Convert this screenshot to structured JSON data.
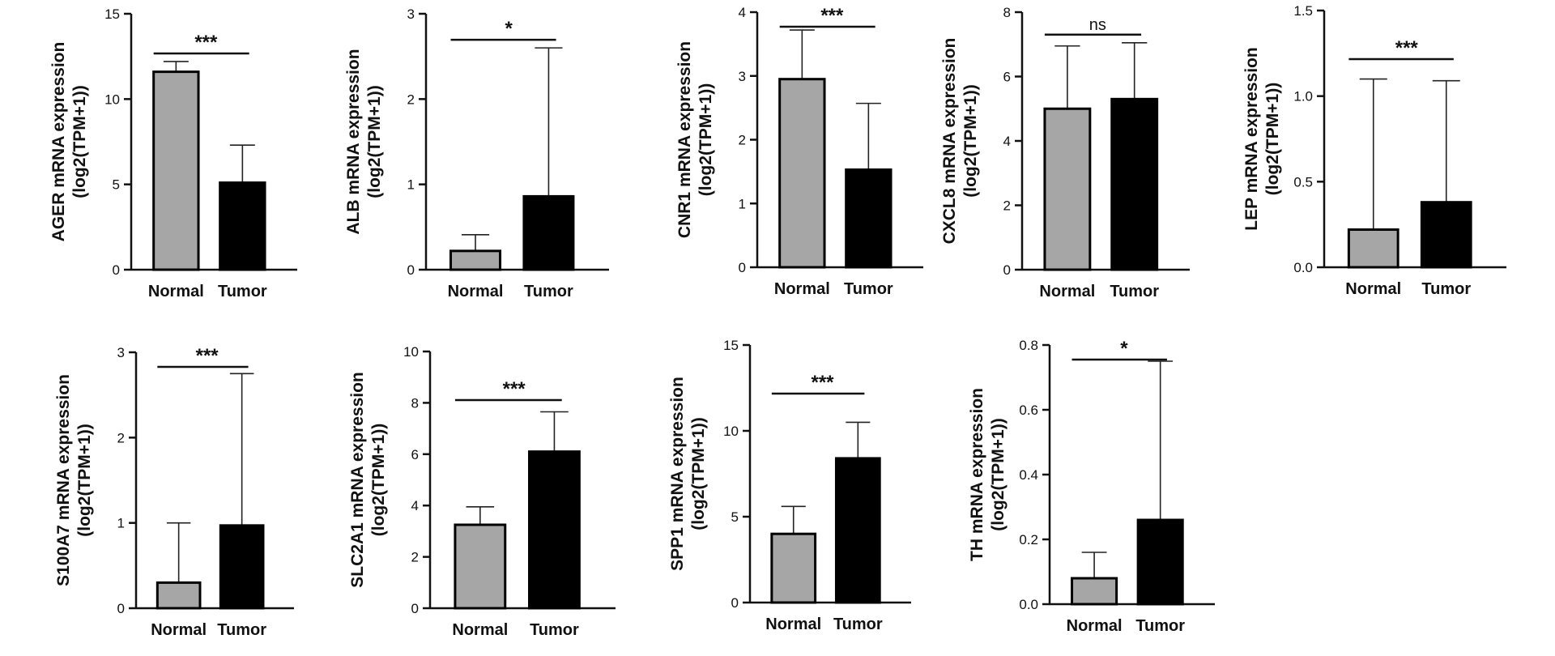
{
  "chart_data": [
    {
      "type": "bar",
      "gene": "AGER",
      "ylabel_line1": "AGER mRNA expression",
      "ylabel_line2": "(log2(TPM+1))",
      "categories": [
        "Normal",
        "Tumor"
      ],
      "values": [
        11.6,
        5.1
      ],
      "errors_upper": [
        12.2,
        7.3
      ],
      "ylim": [
        0,
        15
      ],
      "yticks": [
        "0",
        "5",
        "10",
        "15"
      ],
      "significance": "***",
      "colors": [
        "#a6a6a6",
        "#000000"
      ]
    },
    {
      "type": "bar",
      "gene": "ALB",
      "ylabel_line1": "ALB mRNA expression",
      "ylabel_line2": "(log2(TPM+1))",
      "categories": [
        "Normal",
        "Tumor"
      ],
      "values": [
        0.22,
        0.86
      ],
      "errors_upper": [
        0.41,
        2.6
      ],
      "ylim": [
        0,
        3
      ],
      "yticks": [
        "0",
        "1",
        "2",
        "3"
      ],
      "significance": "*",
      "colors": [
        "#a6a6a6",
        "#000000"
      ]
    },
    {
      "type": "bar",
      "gene": "CNR1",
      "ylabel_line1": "CNR1 mRNA expression",
      "ylabel_line2": "(log2(TPM+1))",
      "categories": [
        "Normal",
        "Tumor"
      ],
      "values": [
        2.95,
        1.53
      ],
      "errors_upper": [
        3.72,
        2.57
      ],
      "ylim": [
        0,
        4
      ],
      "yticks": [
        "0",
        "1",
        "2",
        "3",
        "4"
      ],
      "significance": "***",
      "colors": [
        "#a6a6a6",
        "#000000"
      ]
    },
    {
      "type": "bar",
      "gene": "CXCL8",
      "ylabel_line1": "CXCL8 mRNA expression",
      "ylabel_line2": "(log2(TPM+1))",
      "categories": [
        "Normal",
        "Tumor"
      ],
      "values": [
        5.0,
        5.3
      ],
      "errors_upper": [
        6.95,
        7.05
      ],
      "ylim": [
        0,
        8
      ],
      "yticks": [
        "0",
        "2",
        "4",
        "6",
        "8"
      ],
      "significance": "ns",
      "colors": [
        "#a6a6a6",
        "#000000"
      ]
    },
    {
      "type": "bar",
      "gene": "LEP",
      "ylabel_line1": "LEP mRNA expression",
      "ylabel_line2": "(log2(TPM+1))",
      "categories": [
        "Normal",
        "Tumor"
      ],
      "values": [
        0.22,
        0.38
      ],
      "errors_upper": [
        1.1,
        1.09
      ],
      "ylim": [
        0,
        1.5
      ],
      "yticks": [
        "0.0",
        "0.5",
        "1.0",
        "1.5"
      ],
      "significance": "***",
      "colors": [
        "#a6a6a6",
        "#000000"
      ]
    },
    {
      "type": "bar",
      "gene": "S100A7",
      "ylabel_line1": "S100A7 mRNA expression",
      "ylabel_line2": "(log2(TPM+1))",
      "categories": [
        "Normal",
        "Tumor"
      ],
      "values": [
        0.3,
        0.97
      ],
      "errors_upper": [
        1.0,
        2.75
      ],
      "ylim": [
        0,
        3
      ],
      "yticks": [
        "0",
        "1",
        "2",
        "3"
      ],
      "significance": "***",
      "colors": [
        "#a6a6a6",
        "#000000"
      ]
    },
    {
      "type": "bar",
      "gene": "SLC2A1",
      "ylabel_line1": "SLC2A1 mRNA expression",
      "ylabel_line2": "(log2(TPM+1))",
      "categories": [
        "Normal",
        "Tumor"
      ],
      "values": [
        3.25,
        6.1
      ],
      "errors_upper": [
        3.95,
        7.65
      ],
      "ylim": [
        0,
        10
      ],
      "yticks": [
        "0",
        "2",
        "4",
        "6",
        "8",
        "10"
      ],
      "significance": "***",
      "colors": [
        "#a6a6a6",
        "#000000"
      ]
    },
    {
      "type": "bar",
      "gene": "SPP1",
      "ylabel_line1": "SPP1 mRNA expression",
      "ylabel_line2": "(log2(TPM+1))",
      "categories": [
        "Normal",
        "Tumor"
      ],
      "values": [
        4.0,
        8.4
      ],
      "errors_upper": [
        5.6,
        10.5
      ],
      "ylim": [
        0,
        15
      ],
      "yticks": [
        "0",
        "5",
        "10",
        "15"
      ],
      "significance": "***",
      "colors": [
        "#a6a6a6",
        "#000000"
      ]
    },
    {
      "type": "bar",
      "gene": "TH",
      "ylabel_line1": "TH mRNA expression",
      "ylabel_line2": "(log2(TPM+1))",
      "categories": [
        "Normal",
        "Tumor"
      ],
      "values": [
        0.08,
        0.26
      ],
      "errors_upper": [
        0.16,
        0.75
      ],
      "ylim": [
        0,
        0.8
      ],
      "yticks": [
        "0.0",
        "0.2",
        "0.4",
        "0.6",
        "0.8"
      ],
      "significance": "*",
      "colors": [
        "#a6a6a6",
        "#000000"
      ]
    }
  ]
}
